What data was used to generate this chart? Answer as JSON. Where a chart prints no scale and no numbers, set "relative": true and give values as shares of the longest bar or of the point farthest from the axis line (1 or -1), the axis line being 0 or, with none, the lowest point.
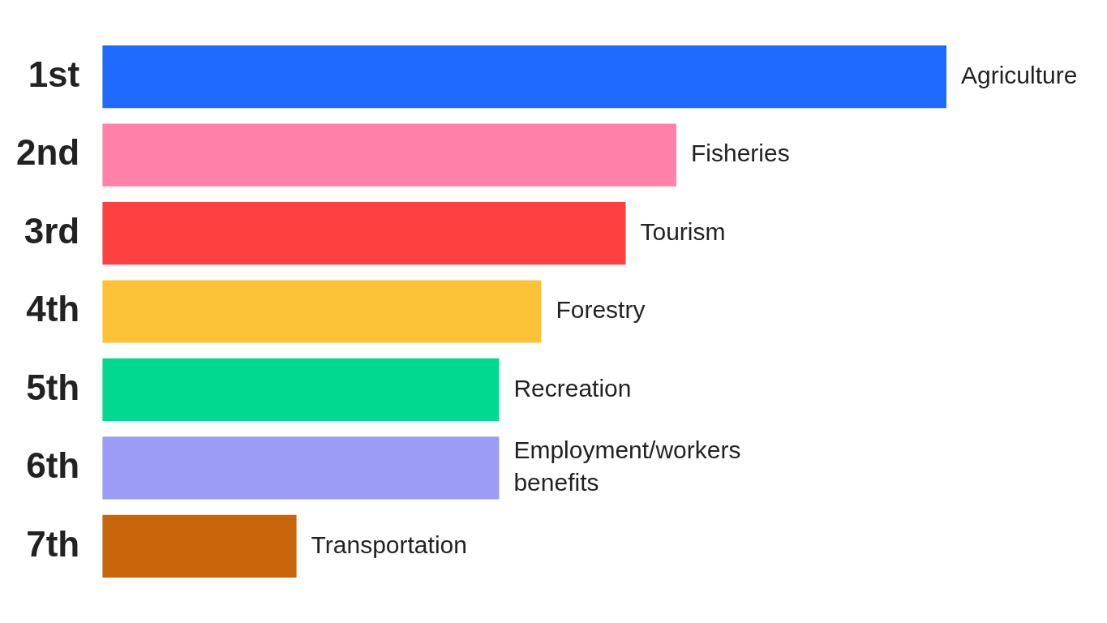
{
  "chart_data": {
    "type": "bar",
    "orientation": "horizontal",
    "relative": true,
    "categories": [
      "1st",
      "2nd",
      "3rd",
      "4th",
      "5th",
      "6th",
      "7th"
    ],
    "values": [
      1,
      0.68,
      0.62,
      0.52,
      0.47,
      0.47,
      0.23
    ],
    "colors": [
      "#1f6bff",
      "#ff80a8",
      "#ff4040",
      "#fcc237",
      "#00d98f",
      "#9a9cf5",
      "#c8650a"
    ],
    "annotations": [
      {
        "text": "Agriculture",
        "x": 1,
        "y": "1st"
      },
      {
        "text": "Fisheries",
        "x": 0.68,
        "y": "2nd"
      },
      {
        "text": "Tourism",
        "x": 0.62,
        "y": "3rd"
      },
      {
        "text": "Forestry",
        "x": 0.52,
        "y": "4th"
      },
      {
        "text": "Recreation",
        "x": 0.47,
        "y": "5th"
      },
      {
        "text": "Employment/workers benefits",
        "x": 0.47,
        "y": "6th"
      },
      {
        "text": "Transportation",
        "x": 0.23,
        "y": "7th"
      }
    ],
    "legend": false
  }
}
